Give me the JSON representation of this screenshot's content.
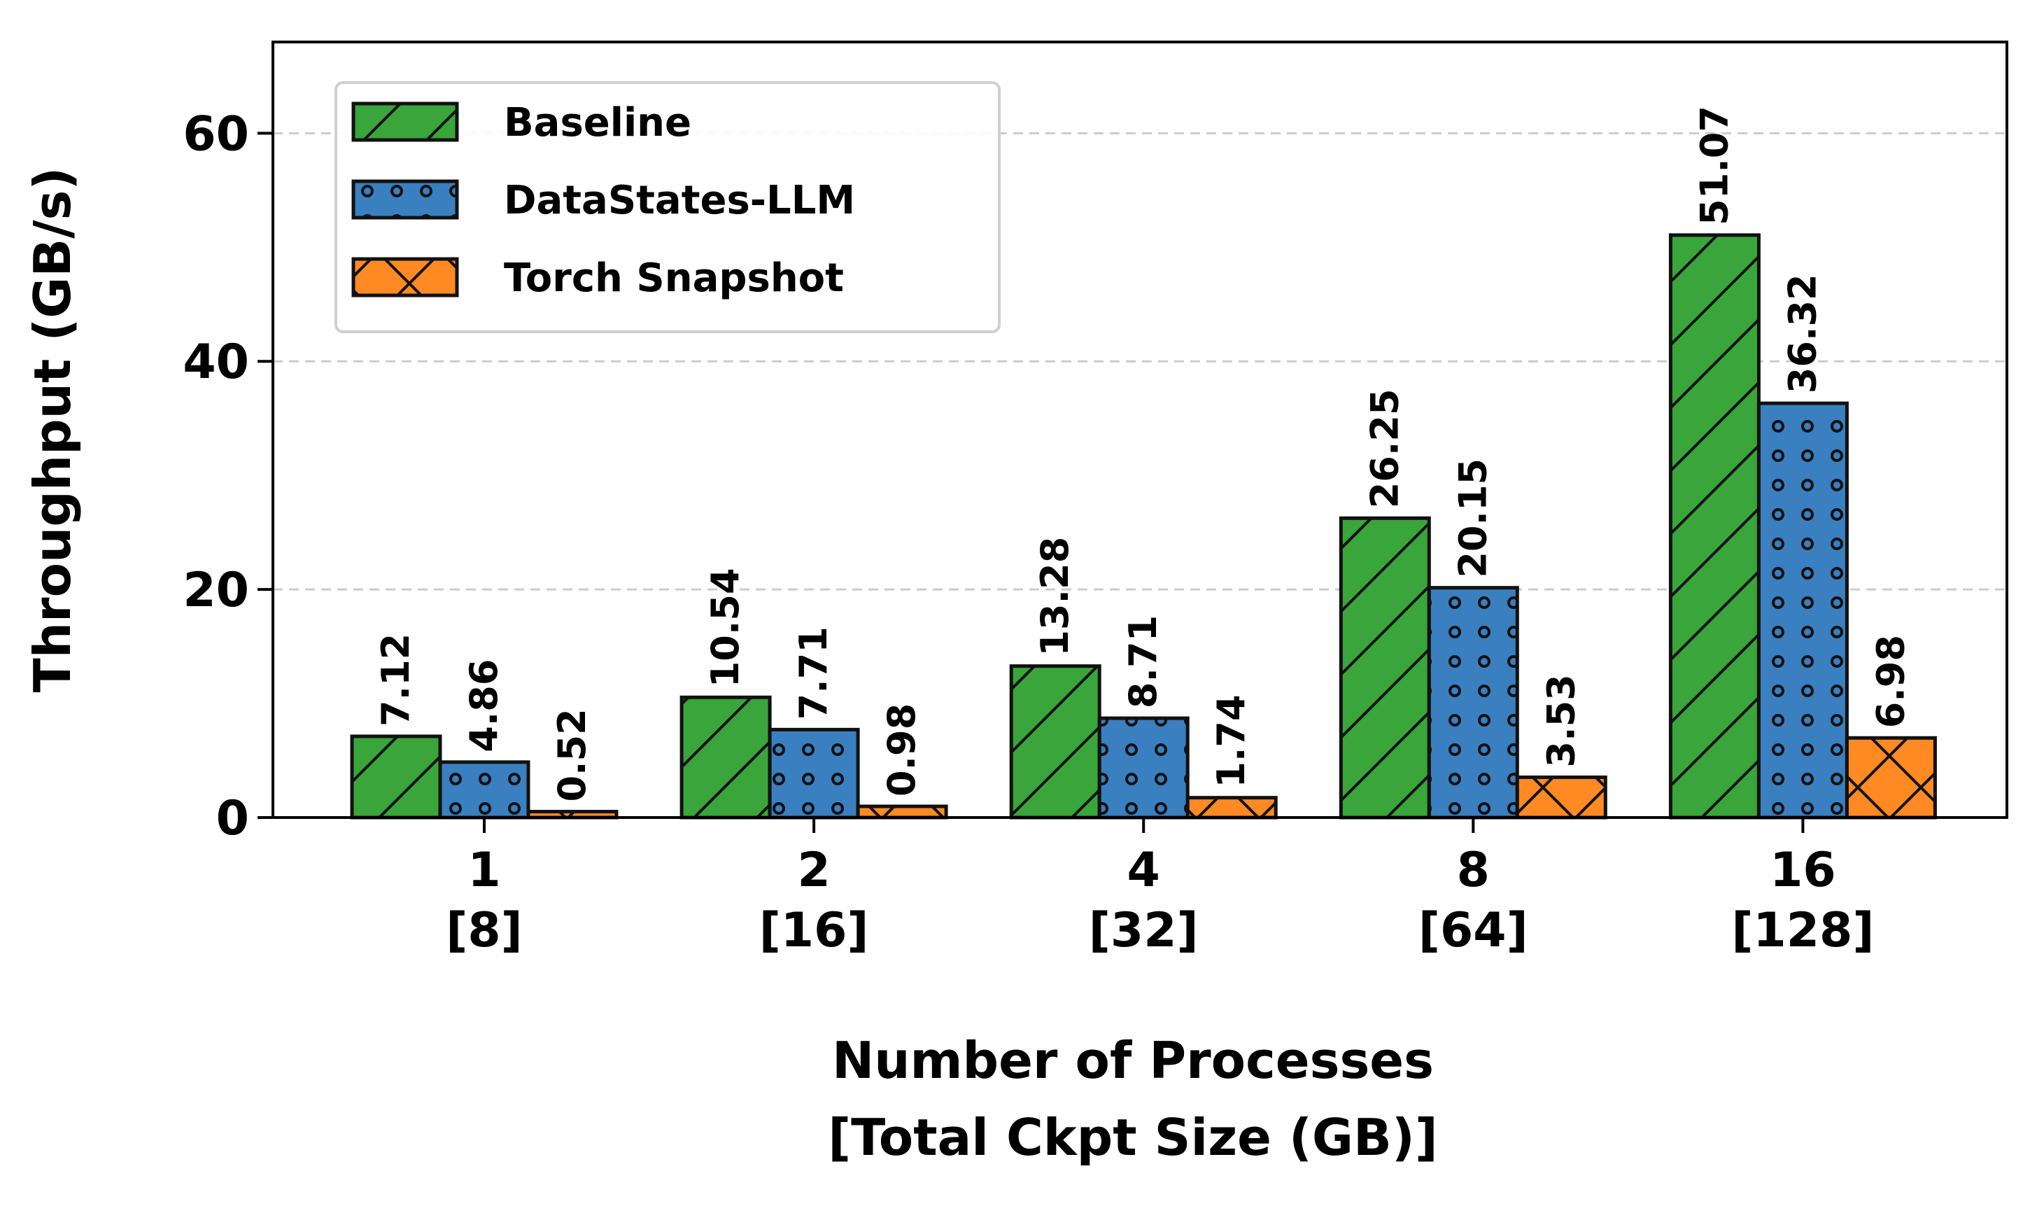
{
  "chart_data": {
    "type": "bar",
    "title": "",
    "xlabel": "Number of Processes\n[Total Ckpt Size (GB)]",
    "ylabel": "Throughput (GB/s)",
    "ylim": [
      0,
      68
    ],
    "yticks": [
      0,
      20,
      40,
      60
    ],
    "grid": "horizontal-dashed",
    "legend_position": "top-left",
    "categories": [
      "1\n[8]",
      "2\n[16]",
      "4\n[32]",
      "8\n[64]",
      "16\n[128]"
    ],
    "series": [
      {
        "name": "Baseline",
        "color": "#3aa53a",
        "hatch": "diagonal",
        "values": [
          7.12,
          10.54,
          13.28,
          26.25,
          51.07
        ]
      },
      {
        "name": "DataStates-LLM",
        "color": "#3a7fc0",
        "hatch": "dots",
        "values": [
          4.86,
          7.71,
          8.71,
          20.15,
          36.32
        ]
      },
      {
        "name": "Torch Snapshot",
        "color": "#ff8a24",
        "hatch": "cross",
        "values": [
          0.52,
          0.98,
          1.74,
          3.53,
          6.98
        ]
      }
    ]
  }
}
